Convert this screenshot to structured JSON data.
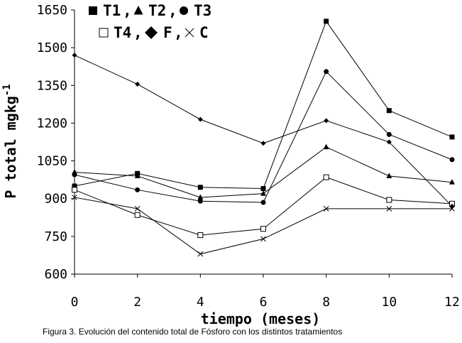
{
  "chart_data": {
    "type": "line",
    "xlabel": "tiempo (meses)",
    "ylabel": "P total mgkg",
    "ylabel_superscript": "-1",
    "x": [
      0,
      2,
      4,
      6,
      8,
      10,
      12
    ],
    "xlim": [
      0,
      12
    ],
    "ylim": [
      600,
      1650
    ],
    "xticks": [
      "0",
      "2",
      "4",
      "6",
      "8",
      "10",
      "12"
    ],
    "yticks": [
      "600",
      "750",
      "900",
      "1050",
      "1200",
      "1350",
      "1500",
      "1650"
    ],
    "xtick_values": [
      0,
      2,
      4,
      6,
      8,
      10,
      12
    ],
    "ytick_values": [
      600,
      750,
      900,
      1050,
      1200,
      1350,
      1500,
      1650
    ],
    "grid": false,
    "legend_position": "top",
    "series": [
      {
        "name": "T1",
        "marker": "square-filled",
        "values": [
          950,
          1000,
          945,
          940,
          1605,
          1250,
          1145
        ]
      },
      {
        "name": "T2",
        "marker": "triangle-filled",
        "values": [
          1005,
          990,
          905,
          920,
          1105,
          990,
          965
        ]
      },
      {
        "name": "T3",
        "marker": "circle-filled",
        "values": [
          995,
          935,
          890,
          885,
          1405,
          1155,
          1055
        ]
      },
      {
        "name": "T4",
        "marker": "square-open",
        "values": [
          935,
          835,
          755,
          780,
          985,
          895,
          880
        ]
      },
      {
        "name": "F",
        "marker": "diamond-filled",
        "values": [
          1470,
          1355,
          1215,
          1120,
          1210,
          1125,
          870
        ]
      },
      {
        "name": "C",
        "marker": "cross",
        "values": [
          905,
          860,
          680,
          740,
          860,
          860,
          860
        ]
      }
    ],
    "legend": {
      "row1": [
        {
          "label": "T1",
          "sep": ","
        },
        {
          "label": "T2",
          "sep": ","
        },
        {
          "label": "T3",
          "sep": ""
        }
      ],
      "row2": [
        {
          "label": "T4",
          "sep": ","
        },
        {
          "label": "F",
          "sep": ","
        },
        {
          "label": "C",
          "sep": ""
        }
      ]
    }
  },
  "caption": "Figura 3. Evolución del contenido total de Fósforo con los distintos tratamientos"
}
